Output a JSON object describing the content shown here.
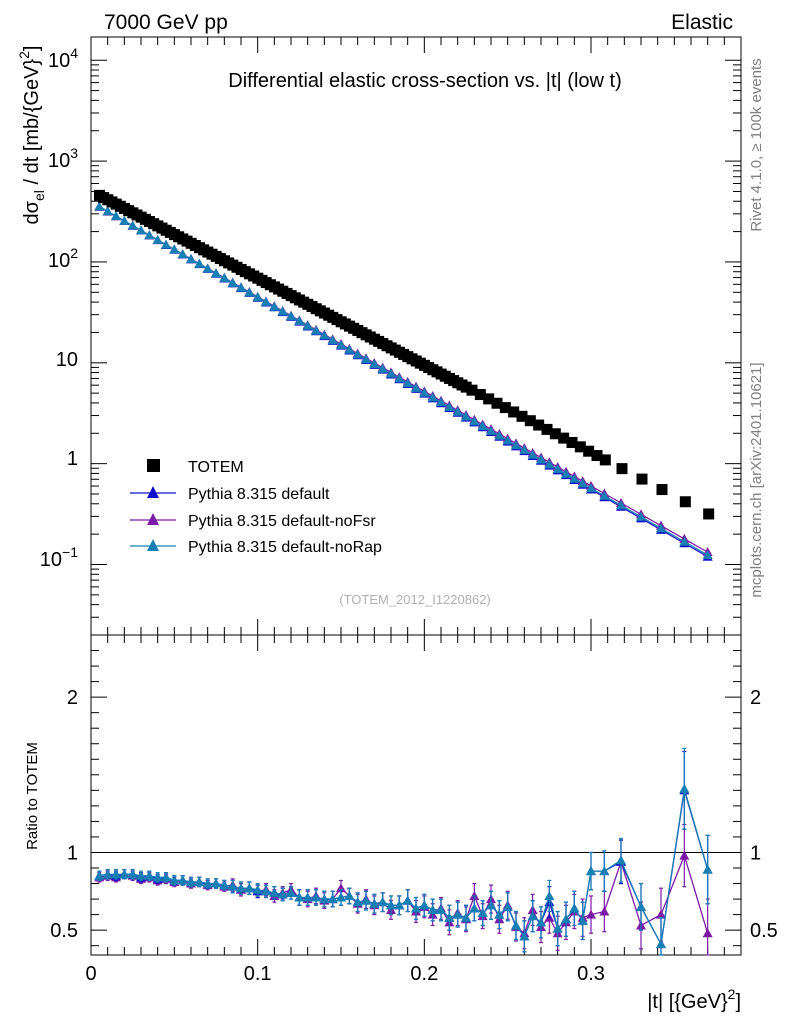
{
  "header": {
    "energy_label": "7000 GeV pp",
    "process_label": "Elastic",
    "side_label_top": "Rivet 4.1.0, ≥ 100k events",
    "side_label_bottom": "mcplots.cern.ch [arXiv:2401.10621]",
    "analysis_id": "(TOTEM_2012_I1220862)"
  },
  "colors": {
    "data": "#000000",
    "default": "#1010cc",
    "noFsr": "#7c1aa8",
    "noRap": "#1680b4",
    "ratio_line": "#000000"
  },
  "chart_data": [
    {
      "type": "scatter",
      "panel": "main",
      "title": "Differential elastic cross-section vs. |t| (low t)",
      "ylabel": "dσ_el / dt [mb/{GeV}^2]",
      "yscale": "log",
      "ylim": [
        0.02,
        17000
      ],
      "xlim": [
        0,
        0.39
      ],
      "y_tick_labels": [
        "10^4",
        "10^3",
        "10^2",
        "10",
        "1",
        "10^-1"
      ],
      "legend": {
        "placement": "middle-left",
        "entries": [
          "TOTEM",
          "Pythia 8.315 default",
          "Pythia 8.315 default-noFsr",
          "Pythia 8.315 default-noRap"
        ]
      },
      "data_t": [
        0.0051,
        0.0076,
        0.0101,
        0.0126,
        0.0151,
        0.0176,
        0.0201,
        0.0226,
        0.0251,
        0.0276,
        0.0301,
        0.0326,
        0.0351,
        0.0376,
        0.0401,
        0.0426,
        0.0451,
        0.0476,
        0.0501,
        0.0526,
        0.0551,
        0.0576,
        0.0601,
        0.0626,
        0.0651,
        0.0676,
        0.0701,
        0.0726,
        0.0751,
        0.0776,
        0.0801,
        0.0826,
        0.0851,
        0.0876,
        0.0901,
        0.0926,
        0.0951,
        0.0976,
        0.1001,
        0.1026,
        0.1051,
        0.1076,
        0.1101,
        0.1126,
        0.1151,
        0.1176,
        0.1201,
        0.1226,
        0.1251,
        0.1276,
        0.1301,
        0.1326,
        0.1351,
        0.1376,
        0.1401,
        0.1426,
        0.1451,
        0.1476,
        0.1501,
        0.1526,
        0.1551,
        0.1576,
        0.1601,
        0.1626,
        0.1651,
        0.1676,
        0.1701,
        0.1726,
        0.1751,
        0.1776,
        0.1801,
        0.1826,
        0.1851,
        0.1876,
        0.1901,
        0.1926,
        0.1951,
        0.1976,
        0.2001,
        0.2026,
        0.2051,
        0.2076,
        0.2101,
        0.2126,
        0.2151,
        0.2176,
        0.2201,
        0.2226,
        0.2251,
        0.2286,
        0.2336,
        0.2386,
        0.2436,
        0.2486,
        0.2536,
        0.2586,
        0.2636,
        0.2686,
        0.2736,
        0.2786,
        0.2836,
        0.2886,
        0.2936,
        0.2986,
        0.3036,
        0.3086,
        0.3186,
        0.3306,
        0.3426,
        0.3566,
        0.3706
      ],
      "model_t": [
        0.005,
        0.01,
        0.015,
        0.02,
        0.025,
        0.03,
        0.035,
        0.04,
        0.045,
        0.05,
        0.055,
        0.06,
        0.065,
        0.07,
        0.075,
        0.08,
        0.085,
        0.09,
        0.095,
        0.1,
        0.105,
        0.11,
        0.115,
        0.12,
        0.125,
        0.13,
        0.135,
        0.14,
        0.145,
        0.15,
        0.155,
        0.16,
        0.165,
        0.17,
        0.175,
        0.18,
        0.185,
        0.19,
        0.195,
        0.2,
        0.205,
        0.21,
        0.215,
        0.22,
        0.225,
        0.23,
        0.235,
        0.24,
        0.245,
        0.25,
        0.255,
        0.26,
        0.265,
        0.27,
        0.275,
        0.28,
        0.285,
        0.29,
        0.295,
        0.3,
        0.308,
        0.318,
        0.33,
        0.342,
        0.356,
        0.37
      ],
      "model_series": [
        {
          "name": "Pythia 8.315 default",
          "color_key": "default",
          "slope": 21.9,
          "norm": 395
        },
        {
          "name": "Pythia 8.315 default-noFsr",
          "color_key": "noFsr",
          "slope": 21.6,
          "norm": 392
        },
        {
          "name": "Pythia 8.315 default-noRap",
          "color_key": "noRap",
          "slope": 21.8,
          "norm": 396
        }
      ],
      "totem_fit": {
        "norm": 506,
        "slope": 19.9
      }
    },
    {
      "type": "line",
      "panel": "ratio",
      "ylabel": "Ratio to TOTEM",
      "xlabel": "|t| [{GeV}^2]",
      "ylim": [
        0.34,
        2.4
      ],
      "xlim": [
        0,
        0.39
      ],
      "y_ticks": [
        0.5,
        1,
        2
      ],
      "y_tick_labels": [
        "0.5",
        "1",
        "2"
      ],
      "x_ticks": [
        0,
        0.1,
        0.2,
        0.3
      ],
      "x_tick_labels": [
        "0",
        "0.1",
        "0.2",
        "0.3"
      ],
      "reference_line": 1.0,
      "ratio_t": [
        0.005,
        0.01,
        0.015,
        0.02,
        0.025,
        0.03,
        0.035,
        0.04,
        0.045,
        0.05,
        0.055,
        0.06,
        0.065,
        0.07,
        0.075,
        0.08,
        0.085,
        0.09,
        0.095,
        0.1,
        0.105,
        0.11,
        0.115,
        0.12,
        0.125,
        0.13,
        0.135,
        0.14,
        0.145,
        0.15,
        0.155,
        0.16,
        0.165,
        0.17,
        0.175,
        0.18,
        0.185,
        0.19,
        0.195,
        0.2,
        0.205,
        0.21,
        0.215,
        0.22,
        0.225,
        0.23,
        0.235,
        0.24,
        0.245,
        0.25,
        0.255,
        0.26,
        0.265,
        0.27,
        0.275,
        0.28,
        0.285,
        0.29,
        0.295,
        0.3,
        0.308,
        0.318,
        0.33,
        0.342,
        0.356,
        0.37
      ],
      "series": [
        {
          "name": "Pythia 8.315 default-noFsr",
          "color_key": "noFsr",
          "values": [
            0.84,
            0.85,
            0.84,
            0.86,
            0.85,
            0.83,
            0.84,
            0.82,
            0.83,
            0.81,
            0.82,
            0.8,
            0.81,
            0.79,
            0.8,
            0.78,
            0.79,
            0.76,
            0.77,
            0.75,
            0.76,
            0.72,
            0.74,
            0.76,
            0.71,
            0.7,
            0.72,
            0.69,
            0.7,
            0.77,
            0.72,
            0.67,
            0.7,
            0.66,
            0.68,
            0.63,
            0.66,
            0.69,
            0.62,
            0.65,
            0.6,
            0.64,
            0.55,
            0.61,
            0.57,
            0.72,
            0.59,
            0.7,
            0.57,
            0.66,
            0.52,
            0.48,
            0.63,
            0.52,
            0.58,
            0.48,
            0.55,
            0.62,
            0.58,
            0.6,
            0.62,
            0.94,
            0.53,
            0.6,
            0.98,
            0.48
          ],
          "errors": [
            0.03,
            0.03,
            0.03,
            0.03,
            0.03,
            0.03,
            0.03,
            0.03,
            0.03,
            0.03,
            0.03,
            0.03,
            0.03,
            0.03,
            0.03,
            0.03,
            0.04,
            0.04,
            0.04,
            0.04,
            0.04,
            0.04,
            0.04,
            0.04,
            0.05,
            0.05,
            0.05,
            0.05,
            0.05,
            0.05,
            0.05,
            0.06,
            0.06,
            0.06,
            0.06,
            0.06,
            0.06,
            0.07,
            0.07,
            0.07,
            0.07,
            0.07,
            0.08,
            0.08,
            0.08,
            0.08,
            0.08,
            0.09,
            0.09,
            0.09,
            0.09,
            0.1,
            0.1,
            0.1,
            0.1,
            0.11,
            0.11,
            0.11,
            0.12,
            0.12,
            0.13,
            0.14,
            0.15,
            0.17,
            0.2,
            0.22
          ]
        },
        {
          "name": "Pythia 8.315 default",
          "color_key": "default",
          "values": [
            0.85,
            0.86,
            0.85,
            0.86,
            0.86,
            0.84,
            0.85,
            0.83,
            0.84,
            0.82,
            0.82,
            0.81,
            0.81,
            0.8,
            0.8,
            0.79,
            0.78,
            0.77,
            0.77,
            0.75,
            0.75,
            0.74,
            0.73,
            0.74,
            0.71,
            0.71,
            0.71,
            0.7,
            0.7,
            0.71,
            0.72,
            0.68,
            0.69,
            0.67,
            0.68,
            0.66,
            0.66,
            0.69,
            0.64,
            0.66,
            0.63,
            0.63,
            0.58,
            0.6,
            0.58,
            0.64,
            0.61,
            0.66,
            0.6,
            0.65,
            0.53,
            0.46,
            0.59,
            0.55,
            0.68,
            0.51,
            0.57,
            0.64,
            0.56,
            0.88,
            0.88,
            0.94,
            0.65,
            0.41,
            1.4,
            0.89
          ],
          "errors": [
            0.03,
            0.03,
            0.03,
            0.03,
            0.03,
            0.03,
            0.03,
            0.03,
            0.03,
            0.03,
            0.03,
            0.03,
            0.03,
            0.03,
            0.03,
            0.03,
            0.04,
            0.04,
            0.04,
            0.04,
            0.04,
            0.04,
            0.04,
            0.04,
            0.05,
            0.05,
            0.05,
            0.05,
            0.05,
            0.05,
            0.05,
            0.06,
            0.06,
            0.06,
            0.06,
            0.06,
            0.06,
            0.07,
            0.07,
            0.07,
            0.07,
            0.07,
            0.08,
            0.08,
            0.08,
            0.08,
            0.08,
            0.09,
            0.09,
            0.09,
            0.09,
            0.1,
            0.1,
            0.1,
            0.1,
            0.11,
            0.11,
            0.11,
            0.12,
            0.12,
            0.13,
            0.14,
            0.15,
            0.17,
            0.25,
            0.22
          ]
        },
        {
          "name": "Pythia 8.315 default-noRap",
          "color_key": "noRap",
          "values": [
            0.85,
            0.86,
            0.86,
            0.86,
            0.86,
            0.85,
            0.85,
            0.84,
            0.84,
            0.82,
            0.82,
            0.81,
            0.81,
            0.8,
            0.8,
            0.79,
            0.78,
            0.77,
            0.77,
            0.76,
            0.75,
            0.74,
            0.73,
            0.74,
            0.71,
            0.71,
            0.71,
            0.7,
            0.7,
            0.71,
            0.72,
            0.68,
            0.69,
            0.67,
            0.68,
            0.66,
            0.66,
            0.69,
            0.64,
            0.66,
            0.63,
            0.63,
            0.58,
            0.6,
            0.58,
            0.64,
            0.61,
            0.66,
            0.6,
            0.65,
            0.53,
            0.46,
            0.59,
            0.55,
            0.72,
            0.51,
            0.57,
            0.64,
            0.56,
            0.88,
            0.88,
            0.95,
            0.65,
            0.41,
            1.41,
            0.89
          ],
          "errors": [
            0.03,
            0.03,
            0.03,
            0.03,
            0.03,
            0.03,
            0.03,
            0.03,
            0.03,
            0.03,
            0.03,
            0.03,
            0.03,
            0.03,
            0.03,
            0.03,
            0.04,
            0.04,
            0.04,
            0.04,
            0.04,
            0.04,
            0.04,
            0.04,
            0.05,
            0.05,
            0.05,
            0.05,
            0.05,
            0.05,
            0.05,
            0.06,
            0.06,
            0.06,
            0.06,
            0.06,
            0.06,
            0.07,
            0.07,
            0.07,
            0.07,
            0.07,
            0.08,
            0.08,
            0.08,
            0.08,
            0.08,
            0.09,
            0.09,
            0.09,
            0.09,
            0.1,
            0.1,
            0.1,
            0.1,
            0.11,
            0.11,
            0.11,
            0.12,
            0.12,
            0.13,
            0.14,
            0.15,
            0.17,
            0.26,
            0.22
          ]
        }
      ]
    }
  ]
}
